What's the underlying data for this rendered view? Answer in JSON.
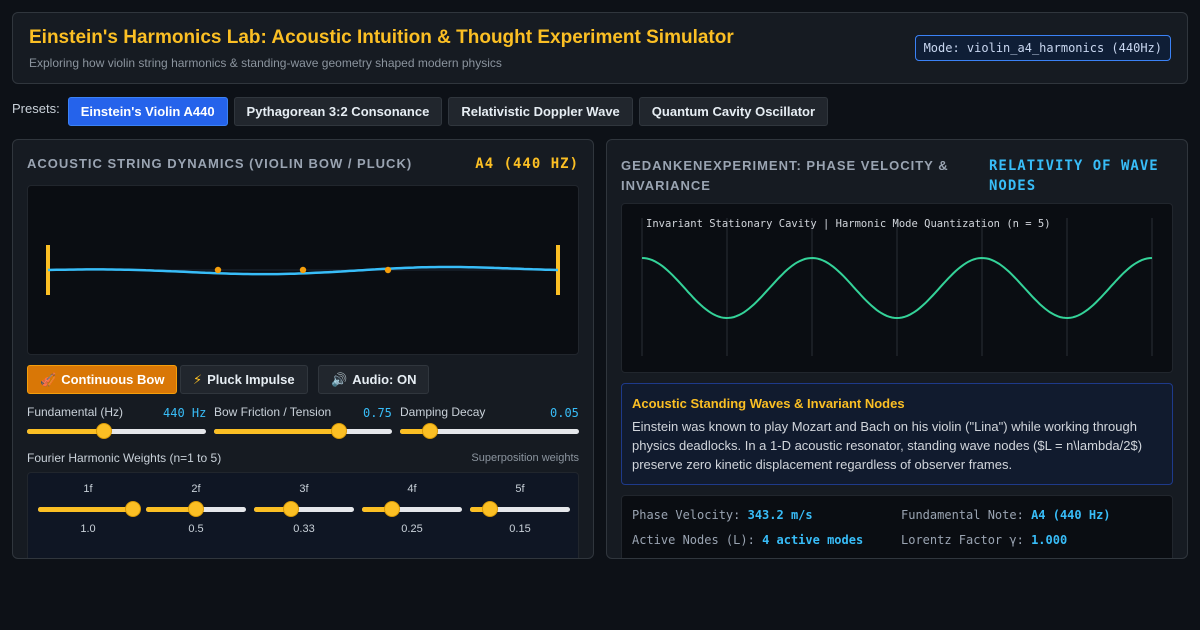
{
  "header": {
    "title": "Einstein's Harmonics Lab: Acoustic Intuition & Thought Experiment Simulator",
    "subtitle": "Exploring how violin string harmonics & standing-wave geometry shaped modern physics",
    "mode": "Mode: violin_a4_harmonics (440Hz)"
  },
  "presets": {
    "label": "Presets:",
    "items": [
      {
        "label": "Einstein's Violin A440",
        "active": true
      },
      {
        "label": "Pythagorean 3:2 Consonance",
        "active": false
      },
      {
        "label": "Relativistic Doppler Wave",
        "active": false
      },
      {
        "label": "Quantum Cavity Oscillator",
        "active": false
      }
    ]
  },
  "left_panel": {
    "title": "ACOUSTIC STRING DYNAMICS (VIOLIN BOW / PLUCK)",
    "note": "A4 (440 HZ)",
    "controls": {
      "bow": "Continuous Bow",
      "pluck": "Pluck Impulse",
      "audio": "Audio: ON"
    },
    "sliders": [
      {
        "label": "Fundamental (Hz)",
        "value": "440 Hz",
        "level": 0.43
      },
      {
        "label": "Bow Friction / Tension",
        "value": "0.75",
        "level": 0.7
      },
      {
        "label": "Damping Decay",
        "value": "0.05",
        "level": 0.17
      }
    ],
    "harmonics": {
      "label": "Fourier Harmonic Weights (n=1 to 5)",
      "sublabel": "Superposition weights",
      "items": [
        {
          "name": "1f",
          "value": "1.0",
          "level": 0.95
        },
        {
          "name": "2f",
          "value": "0.5",
          "level": 0.5
        },
        {
          "name": "3f",
          "value": "0.33",
          "level": 0.37
        },
        {
          "name": "4f",
          "value": "0.25",
          "level": 0.3
        },
        {
          "name": "5f",
          "value": "0.15",
          "level": 0.2
        }
      ]
    }
  },
  "right_panel": {
    "title_line1": "GEDANKENEXPERIMENT: PHASE VELOCITY &",
    "title_line2": "INVARIANCE",
    "accent_line1": "RELATIVITY OF WAVE",
    "accent_line2": "NODES",
    "cavity_caption": "Invariant Stationary Cavity | Harmonic Mode Quantization (n = 5)",
    "info": {
      "heading": "Acoustic Standing Waves & Invariant Nodes",
      "body": "Einstein was known to play Mozart and Bach on his violin (\"Lina\") while working through physics deadlocks. In a 1-D acoustic resonator, standing wave nodes ($L = n\\lambda/2$) preserve zero kinetic displacement regardless of observer frames."
    },
    "stats": {
      "phase_velocity_label": "Phase Velocity:",
      "phase_velocity_value": "343.2 m/s",
      "fundamental_label": "Fundamental Note:",
      "fundamental_value": "A4 (440 Hz)",
      "nodes_label": "Active Nodes (L):",
      "nodes_value": "4 active modes",
      "lorentz_label": "Lorentz Factor γ:",
      "lorentz_value": "1.000"
    }
  },
  "colors": {
    "accent_gold": "#fbbf24",
    "accent_blue": "#38bdf8",
    "string_wave": "#38bdf8",
    "cavity_wave": "#34d399",
    "bow_active": "#d97706",
    "preset_active": "#2563eb"
  },
  "icons": {
    "bow": "violin-icon",
    "pluck": "lightning-icon",
    "audio": "speaker-icon"
  }
}
